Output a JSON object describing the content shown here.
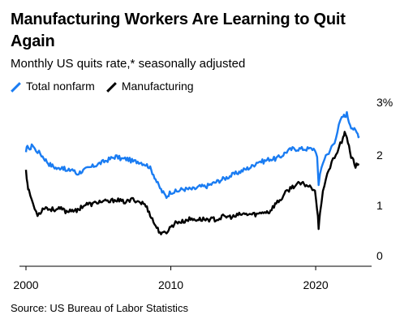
{
  "title": "Manufacturing Workers Are Learning to Quit Again",
  "subtitle": "Monthly US quits rate,* seasonally adjusted",
  "source": "Source: US Bureau of Labor Statistics",
  "colors": {
    "total": "#1a7cf2",
    "manufacturing": "#000000",
    "axis": "#000000"
  },
  "chart_data": {
    "type": "line",
    "title": "Manufacturing Workers Are Learning to Quit Again",
    "subtitle": "Monthly US quits rate,* seasonally adjusted",
    "xlabel": "",
    "ylabel": "",
    "xlim": [
      2000,
      2023.3
    ],
    "ylim": [
      0,
      3
    ],
    "grid": false,
    "legend_position": "top-left",
    "x_ticks": [
      2000,
      2010,
      2020
    ],
    "x_tick_labels": [
      "2000",
      "2010",
      "2020"
    ],
    "y_ticks": [
      0,
      1,
      2,
      3
    ],
    "y_tick_labels": [
      "0",
      "1",
      "2",
      "3%"
    ],
    "series": [
      {
        "name": "Total nonfarm",
        "color": "#1a7cf2",
        "points": [
          [
            2000.0,
            2.2
          ],
          [
            2000.1,
            2.4
          ],
          [
            2000.25,
            2.25
          ],
          [
            2000.4,
            2.4
          ],
          [
            2000.6,
            2.3
          ],
          [
            2000.8,
            2.25
          ],
          [
            2001.0,
            2.2
          ],
          [
            2001.3,
            2.1
          ],
          [
            2001.6,
            2.0
          ],
          [
            2001.9,
            1.95
          ],
          [
            2002.2,
            1.9
          ],
          [
            2002.5,
            1.95
          ],
          [
            2002.8,
            1.85
          ],
          [
            2003.2,
            1.9
          ],
          [
            2003.5,
            1.8
          ],
          [
            2003.8,
            1.85
          ],
          [
            2004.2,
            1.9
          ],
          [
            2004.6,
            1.95
          ],
          [
            2005.0,
            2.0
          ],
          [
            2005.4,
            2.05
          ],
          [
            2005.8,
            2.1
          ],
          [
            2006.2,
            2.15
          ],
          [
            2006.6,
            2.1
          ],
          [
            2007.0,
            2.1
          ],
          [
            2007.4,
            2.05
          ],
          [
            2007.8,
            2.05
          ],
          [
            2008.2,
            2.0
          ],
          [
            2008.5,
            1.95
          ],
          [
            2008.8,
            1.8
          ],
          [
            2009.1,
            1.6
          ],
          [
            2009.4,
            1.45
          ],
          [
            2009.7,
            1.35
          ],
          [
            2010.0,
            1.45
          ],
          [
            2010.4,
            1.45
          ],
          [
            2010.8,
            1.5
          ],
          [
            2011.2,
            1.5
          ],
          [
            2011.6,
            1.5
          ],
          [
            2012.0,
            1.55
          ],
          [
            2012.4,
            1.55
          ],
          [
            2012.8,
            1.6
          ],
          [
            2013.2,
            1.65
          ],
          [
            2013.6,
            1.7
          ],
          [
            2014.0,
            1.75
          ],
          [
            2014.4,
            1.8
          ],
          [
            2014.8,
            1.85
          ],
          [
            2015.2,
            1.9
          ],
          [
            2015.6,
            1.95
          ],
          [
            2016.0,
            2.05
          ],
          [
            2016.4,
            2.05
          ],
          [
            2016.8,
            2.1
          ],
          [
            2017.2,
            2.1
          ],
          [
            2017.6,
            2.15
          ],
          [
            2018.0,
            2.25
          ],
          [
            2018.4,
            2.3
          ],
          [
            2018.8,
            2.3
          ],
          [
            2019.2,
            2.3
          ],
          [
            2019.6,
            2.3
          ],
          [
            2019.95,
            2.3
          ],
          [
            2020.1,
            2.1
          ],
          [
            2020.2,
            1.6
          ],
          [
            2020.3,
            1.8
          ],
          [
            2020.5,
            2.05
          ],
          [
            2020.7,
            2.15
          ],
          [
            2020.9,
            2.2
          ],
          [
            2021.1,
            2.35
          ],
          [
            2021.3,
            2.45
          ],
          [
            2021.5,
            2.65
          ],
          [
            2021.7,
            2.85
          ],
          [
            2021.9,
            2.95
          ],
          [
            2022.0,
            2.95
          ],
          [
            2022.15,
            3.0
          ],
          [
            2022.3,
            2.85
          ],
          [
            2022.45,
            2.75
          ],
          [
            2022.6,
            2.7
          ],
          [
            2022.75,
            2.65
          ],
          [
            2022.9,
            2.6
          ],
          [
            2023.0,
            2.55
          ]
        ]
      },
      {
        "name": "Manufacturing",
        "color": "#000000",
        "points": [
          [
            2000.0,
            1.9
          ],
          [
            2000.1,
            1.6
          ],
          [
            2000.2,
            1.45
          ],
          [
            2000.4,
            1.3
          ],
          [
            2000.6,
            1.1
          ],
          [
            2000.8,
            1.0
          ],
          [
            2001.0,
            1.05
          ],
          [
            2001.3,
            1.15
          ],
          [
            2001.6,
            1.1
          ],
          [
            2001.9,
            1.1
          ],
          [
            2002.2,
            1.1
          ],
          [
            2002.5,
            1.1
          ],
          [
            2002.8,
            1.05
          ],
          [
            2003.2,
            1.1
          ],
          [
            2003.5,
            1.05
          ],
          [
            2003.8,
            1.15
          ],
          [
            2004.2,
            1.2
          ],
          [
            2004.6,
            1.2
          ],
          [
            2005.0,
            1.25
          ],
          [
            2005.4,
            1.25
          ],
          [
            2005.8,
            1.25
          ],
          [
            2006.2,
            1.3
          ],
          [
            2006.6,
            1.25
          ],
          [
            2007.0,
            1.25
          ],
          [
            2007.4,
            1.3
          ],
          [
            2007.8,
            1.25
          ],
          [
            2008.2,
            1.2
          ],
          [
            2008.5,
            1.05
          ],
          [
            2008.8,
            0.85
          ],
          [
            2009.1,
            0.7
          ],
          [
            2009.4,
            0.6
          ],
          [
            2009.7,
            0.65
          ],
          [
            2010.0,
            0.75
          ],
          [
            2010.4,
            0.85
          ],
          [
            2010.8,
            0.85
          ],
          [
            2011.2,
            0.9
          ],
          [
            2011.6,
            0.9
          ],
          [
            2012.0,
            0.9
          ],
          [
            2012.4,
            0.9
          ],
          [
            2012.8,
            0.9
          ],
          [
            2013.2,
            0.9
          ],
          [
            2013.6,
            0.95
          ],
          [
            2014.0,
            0.95
          ],
          [
            2014.4,
            0.95
          ],
          [
            2014.8,
            1.0
          ],
          [
            2015.2,
            1.0
          ],
          [
            2015.6,
            1.0
          ],
          [
            2016.0,
            1.0
          ],
          [
            2016.4,
            1.05
          ],
          [
            2016.8,
            1.05
          ],
          [
            2017.2,
            1.2
          ],
          [
            2017.6,
            1.3
          ],
          [
            2018.0,
            1.45
          ],
          [
            2018.4,
            1.55
          ],
          [
            2018.8,
            1.6
          ],
          [
            2019.2,
            1.6
          ],
          [
            2019.6,
            1.55
          ],
          [
            2019.95,
            1.5
          ],
          [
            2020.1,
            1.1
          ],
          [
            2020.2,
            0.75
          ],
          [
            2020.3,
            1.05
          ],
          [
            2020.5,
            1.45
          ],
          [
            2020.7,
            1.7
          ],
          [
            2020.9,
            1.85
          ],
          [
            2021.1,
            2.05
          ],
          [
            2021.3,
            2.1
          ],
          [
            2021.5,
            2.25
          ],
          [
            2021.7,
            2.4
          ],
          [
            2021.9,
            2.5
          ],
          [
            2022.0,
            2.6
          ],
          [
            2022.15,
            2.55
          ],
          [
            2022.3,
            2.35
          ],
          [
            2022.45,
            2.15
          ],
          [
            2022.6,
            2.05
          ],
          [
            2022.75,
            1.95
          ],
          [
            2022.9,
            2.0
          ],
          [
            2023.0,
            2.0
          ]
        ]
      }
    ]
  }
}
